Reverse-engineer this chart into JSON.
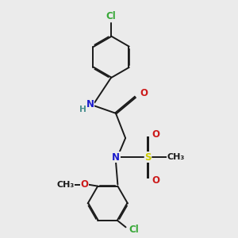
{
  "bg_color": "#ebebeb",
  "bond_color": "#1a1a1a",
  "bond_width": 1.4,
  "dbo": 0.018,
  "atom_colors": {
    "C": "#1a1a1a",
    "N": "#1a1acc",
    "O": "#cc1a1a",
    "S": "#cccc00",
    "Cl": "#38a838",
    "H": "#4a9090"
  },
  "fs": 8.5
}
